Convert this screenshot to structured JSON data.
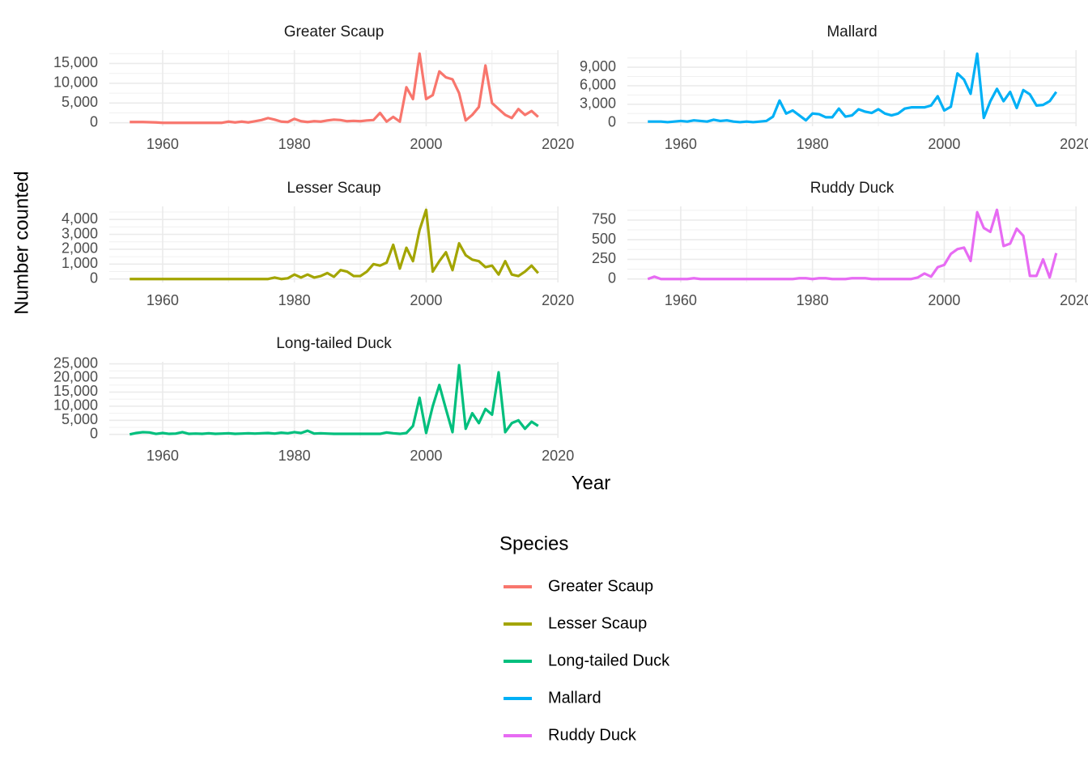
{
  "chart_data": [
    {
      "type": "line",
      "title": "Greater Scaup",
      "grid": true,
      "x": [
        1955,
        1956,
        1957,
        1958,
        1959,
        1960,
        1961,
        1962,
        1963,
        1964,
        1965,
        1966,
        1967,
        1968,
        1969,
        1970,
        1971,
        1972,
        1973,
        1974,
        1975,
        1976,
        1977,
        1978,
        1979,
        1980,
        1981,
        1982,
        1983,
        1984,
        1985,
        1986,
        1987,
        1988,
        1989,
        1990,
        1991,
        1992,
        1993,
        1994,
        1995,
        1996,
        1997,
        1998,
        1999,
        2000,
        2001,
        2002,
        2003,
        2004,
        2005,
        2006,
        2007,
        2008,
        2009,
        2010,
        2011,
        2012,
        2013,
        2014,
        2015,
        2016,
        2017
      ],
      "series": [
        {
          "name": "Greater Scaup",
          "color": "#F8766D",
          "values": [
            200,
            200,
            200,
            150,
            100,
            0,
            0,
            0,
            0,
            0,
            0,
            0,
            0,
            0,
            0,
            300,
            100,
            300,
            100,
            400,
            700,
            1200,
            800,
            300,
            200,
            1000,
            400,
            200,
            400,
            300,
            600,
            800,
            700,
            400,
            500,
            400,
            600,
            700,
            2500,
            300,
            1500,
            300,
            9000,
            6000,
            17500,
            6000,
            7000,
            13000,
            11500,
            11000,
            7500,
            600,
            2000,
            4000,
            14500,
            5000,
            3500,
            2000,
            1200,
            3500,
            2000,
            3000,
            1500
          ]
        }
      ],
      "xlim": [
        1951.9,
        2020.1
      ],
      "xticks": [
        1960,
        1980,
        2000,
        2020
      ],
      "ylim": [
        -875,
        18375
      ],
      "yticks": [
        0,
        {
          "value": 5000,
          "label": "5,000"
        },
        {
          "value": 10000,
          "label": "10,000"
        },
        {
          "value": 15000,
          "label": "15,000"
        }
      ]
    },
    {
      "type": "line",
      "title": "Mallard",
      "grid": true,
      "x": [
        1955,
        1956,
        1957,
        1958,
        1959,
        1960,
        1961,
        1962,
        1963,
        1964,
        1965,
        1966,
        1967,
        1968,
        1969,
        1970,
        1971,
        1972,
        1973,
        1974,
        1975,
        1976,
        1977,
        1978,
        1979,
        1980,
        1981,
        1982,
        1983,
        1984,
        1985,
        1986,
        1987,
        1988,
        1989,
        1990,
        1991,
        1992,
        1993,
        1994,
        1995,
        1996,
        1997,
        1998,
        1999,
        2000,
        2001,
        2002,
        2003,
        2004,
        2005,
        2006,
        2007,
        2008,
        2009,
        2010,
        2011,
        2012,
        2013,
        2014,
        2015,
        2016,
        2017
      ],
      "series": [
        {
          "name": "Mallard",
          "color": "#00B0F6",
          "values": [
            200,
            200,
            200,
            100,
            200,
            300,
            200,
            400,
            300,
            200,
            500,
            300,
            400,
            200,
            100,
            200,
            100,
            200,
            300,
            1000,
            3600,
            1500,
            2000,
            1200,
            400,
            1500,
            1400,
            900,
            900,
            2300,
            1000,
            1200,
            2200,
            1800,
            1600,
            2200,
            1500,
            1200,
            1500,
            2300,
            2500,
            2500,
            2500,
            2800,
            4300,
            2000,
            2600,
            8000,
            7000,
            4700,
            11200,
            800,
            3500,
            5500,
            3500,
            5000,
            2400,
            5300,
            4600,
            2800,
            2900,
            3500,
            5000
          ]
        }
      ],
      "xlim": [
        1951.9,
        2020.1
      ],
      "xticks": [
        1960,
        1980,
        2000,
        2020
      ],
      "ylim": [
        -560,
        11760
      ],
      "yticks": [
        0,
        {
          "value": 3000,
          "label": "3,000"
        },
        {
          "value": 6000,
          "label": "6,000"
        },
        {
          "value": 9000,
          "label": "9,000"
        }
      ]
    },
    {
      "type": "line",
      "title": "Lesser Scaup",
      "grid": true,
      "x": [
        1955,
        1956,
        1957,
        1958,
        1959,
        1960,
        1961,
        1962,
        1963,
        1964,
        1965,
        1966,
        1967,
        1968,
        1969,
        1970,
        1971,
        1972,
        1973,
        1974,
        1975,
        1976,
        1977,
        1978,
        1979,
        1980,
        1981,
        1982,
        1983,
        1984,
        1985,
        1986,
        1987,
        1988,
        1989,
        1990,
        1991,
        1992,
        1993,
        1994,
        1995,
        1996,
        1997,
        1998,
        1999,
        2000,
        2001,
        2002,
        2003,
        2004,
        2005,
        2006,
        2007,
        2008,
        2009,
        2010,
        2011,
        2012,
        2013,
        2014,
        2015,
        2016,
        2017
      ],
      "series": [
        {
          "name": "Lesser Scaup",
          "color": "#A3A500",
          "values": [
            0,
            0,
            0,
            0,
            0,
            0,
            0,
            0,
            0,
            0,
            0,
            0,
            0,
            0,
            0,
            0,
            0,
            0,
            0,
            0,
            0,
            0,
            100,
            0,
            50,
            300,
            100,
            300,
            100,
            200,
            400,
            150,
            600,
            500,
            200,
            200,
            500,
            1000,
            900,
            1100,
            2300,
            700,
            2100,
            1200,
            3300,
            4650,
            500,
            1200,
            1800,
            600,
            2400,
            1600,
            1300,
            1200,
            800,
            900,
            300,
            1200,
            300,
            200,
            500,
            900,
            400
          ]
        }
      ],
      "xlim": [
        1951.9,
        2020.1
      ],
      "xticks": [
        1960,
        1980,
        2000,
        2020
      ],
      "ylim": [
        -232.5,
        4882.5
      ],
      "yticks": [
        0,
        {
          "value": 1000,
          "label": "1,000"
        },
        {
          "value": 2000,
          "label": "2,000"
        },
        {
          "value": 3000,
          "label": "3,000"
        },
        {
          "value": 4000,
          "label": "4,000"
        }
      ]
    },
    {
      "type": "line",
      "title": "Ruddy Duck",
      "grid": true,
      "x": [
        1955,
        1956,
        1957,
        1958,
        1959,
        1960,
        1961,
        1962,
        1963,
        1964,
        1965,
        1966,
        1967,
        1968,
        1969,
        1970,
        1971,
        1972,
        1973,
        1974,
        1975,
        1976,
        1977,
        1978,
        1979,
        1980,
        1981,
        1982,
        1983,
        1984,
        1985,
        1986,
        1987,
        1988,
        1989,
        1990,
        1991,
        1992,
        1993,
        1994,
        1995,
        1996,
        1997,
        1998,
        1999,
        2000,
        2001,
        2002,
        2003,
        2004,
        2005,
        2006,
        2007,
        2008,
        2009,
        2010,
        2011,
        2012,
        2013,
        2014,
        2015,
        2016,
        2017
      ],
      "series": [
        {
          "name": "Ruddy Duck",
          "color": "#E76BF3",
          "values": [
            0,
            30,
            0,
            0,
            0,
            0,
            0,
            10,
            0,
            0,
            0,
            0,
            0,
            0,
            0,
            0,
            0,
            0,
            0,
            0,
            0,
            0,
            0,
            10,
            10,
            0,
            10,
            10,
            0,
            0,
            0,
            10,
            10,
            10,
            0,
            0,
            0,
            0,
            0,
            0,
            0,
            20,
            70,
            30,
            150,
            180,
            320,
            380,
            400,
            230,
            850,
            650,
            600,
            880,
            420,
            450,
            640,
            550,
            40,
            40,
            250,
            20,
            330
          ]
        }
      ],
      "xlim": [
        1951.9,
        2020.1
      ],
      "xticks": [
        1960,
        1980,
        2000,
        2020
      ],
      "ylim": [
        -44,
        924
      ],
      "yticks": [
        0,
        250,
        500,
        750
      ]
    },
    {
      "type": "line",
      "title": "Long-tailed Duck",
      "grid": true,
      "x": [
        1955,
        1956,
        1957,
        1958,
        1959,
        1960,
        1961,
        1962,
        1963,
        1964,
        1965,
        1966,
        1967,
        1968,
        1969,
        1970,
        1971,
        1972,
        1973,
        1974,
        1975,
        1976,
        1977,
        1978,
        1979,
        1980,
        1981,
        1982,
        1983,
        1984,
        1985,
        1986,
        1987,
        1988,
        1989,
        1990,
        1991,
        1992,
        1993,
        1994,
        1995,
        1996,
        1997,
        1998,
        1999,
        2000,
        2001,
        2002,
        2003,
        2004,
        2005,
        2006,
        2007,
        2008,
        2009,
        2010,
        2011,
        2012,
        2013,
        2014,
        2015,
        2016,
        2017
      ],
      "series": [
        {
          "name": "Long-tailed Duck",
          "color": "#00BF7D",
          "values": [
            0,
            500,
            800,
            700,
            200,
            500,
            200,
            300,
            800,
            200,
            300,
            200,
            400,
            200,
            300,
            400,
            200,
            300,
            400,
            300,
            400,
            500,
            300,
            600,
            400,
            800,
            500,
            1300,
            300,
            400,
            300,
            200,
            200,
            200,
            200,
            200,
            200,
            200,
            200,
            700,
            400,
            200,
            500,
            3000,
            13000,
            500,
            10000,
            17500,
            9000,
            800,
            24500,
            2000,
            7500,
            4000,
            9000,
            7000,
            22000,
            800,
            4000,
            5000,
            2000,
            4500,
            3000
          ]
        }
      ],
      "xlim": [
        1951.9,
        2020.1
      ],
      "xticks": [
        1960,
        1980,
        2000,
        2020
      ],
      "ylim": [
        -1225,
        25725
      ],
      "yticks": [
        0,
        {
          "value": 5000,
          "label": "5,000"
        },
        {
          "value": 10000,
          "label": "10,000"
        },
        {
          "value": 15000,
          "label": "15,000"
        },
        {
          "value": 20000,
          "label": "20,000"
        },
        {
          "value": 25000,
          "label": "25,000"
        }
      ]
    }
  ],
  "x_label": "Year",
  "y_label": "Number counted",
  "legend": {
    "title": "Species",
    "position": "bottom"
  }
}
